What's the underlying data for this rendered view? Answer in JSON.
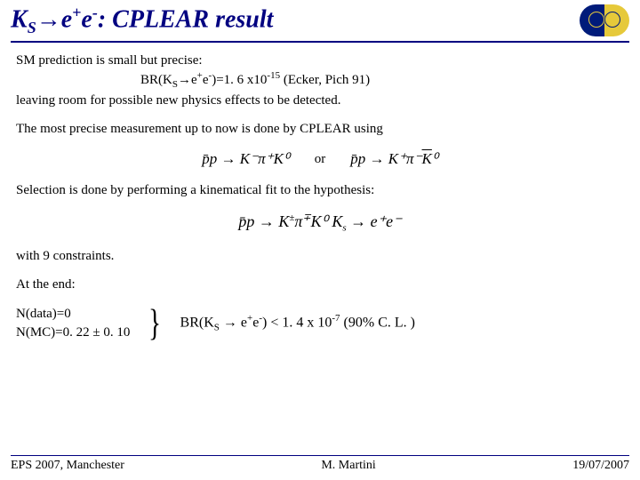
{
  "title": {
    "ks": "K",
    "s": "S",
    "arrow": "→",
    "e": "e",
    "plus": "+",
    "minus": "-",
    "rest": ": CPLEAR result"
  },
  "p1": {
    "l1": "SM prediction is small  but precise:",
    "l2a": "BR(K",
    "l2s": "S",
    "l2b": "→e",
    "l2p": "+",
    "l2c": "e",
    "l2m": "-",
    "l2d": ")=1. 6 x10",
    "l2e": "-15",
    "l2f": "  (Ecker, Pich 91)",
    "l3": "leaving room for possible new physics effects to be detected."
  },
  "p2": "The most precise measurement up to now  is done by CPLEAR using",
  "eq1": {
    "lhs": "p̄p → K⁻π⁺K⁰",
    "or": "or",
    "rhs_a": "p̄p → K⁺π⁻",
    "rhs_k": "K",
    "rhs_z": "⁰"
  },
  "p3": "Selection is done by performing a kinematical fit to the hypothesis:",
  "eq2": {
    "a": "p̄p → K",
    "pm": "±",
    "b": "π",
    "mp": "∓",
    "c": "K⁰       K",
    "s": "s",
    "d": " → e⁺e⁻"
  },
  "p4": "with 9 constraints.",
  "p5": "At the end:",
  "stack": {
    "l1": "N(data)=0",
    "l2": "N(MC)=0. 22 ± 0. 10"
  },
  "result": {
    "a": "BR(K",
    "s": "S",
    "b": " → e",
    "p": "+",
    "c": "e",
    "m": "-",
    "d": ") < 1. 4 x 10",
    "e": "-7",
    "f": " (90% C. L. )"
  },
  "footer": {
    "left": "EPS 2007, Manchester",
    "mid": "M. Martini",
    "right": "19/07/2007"
  }
}
